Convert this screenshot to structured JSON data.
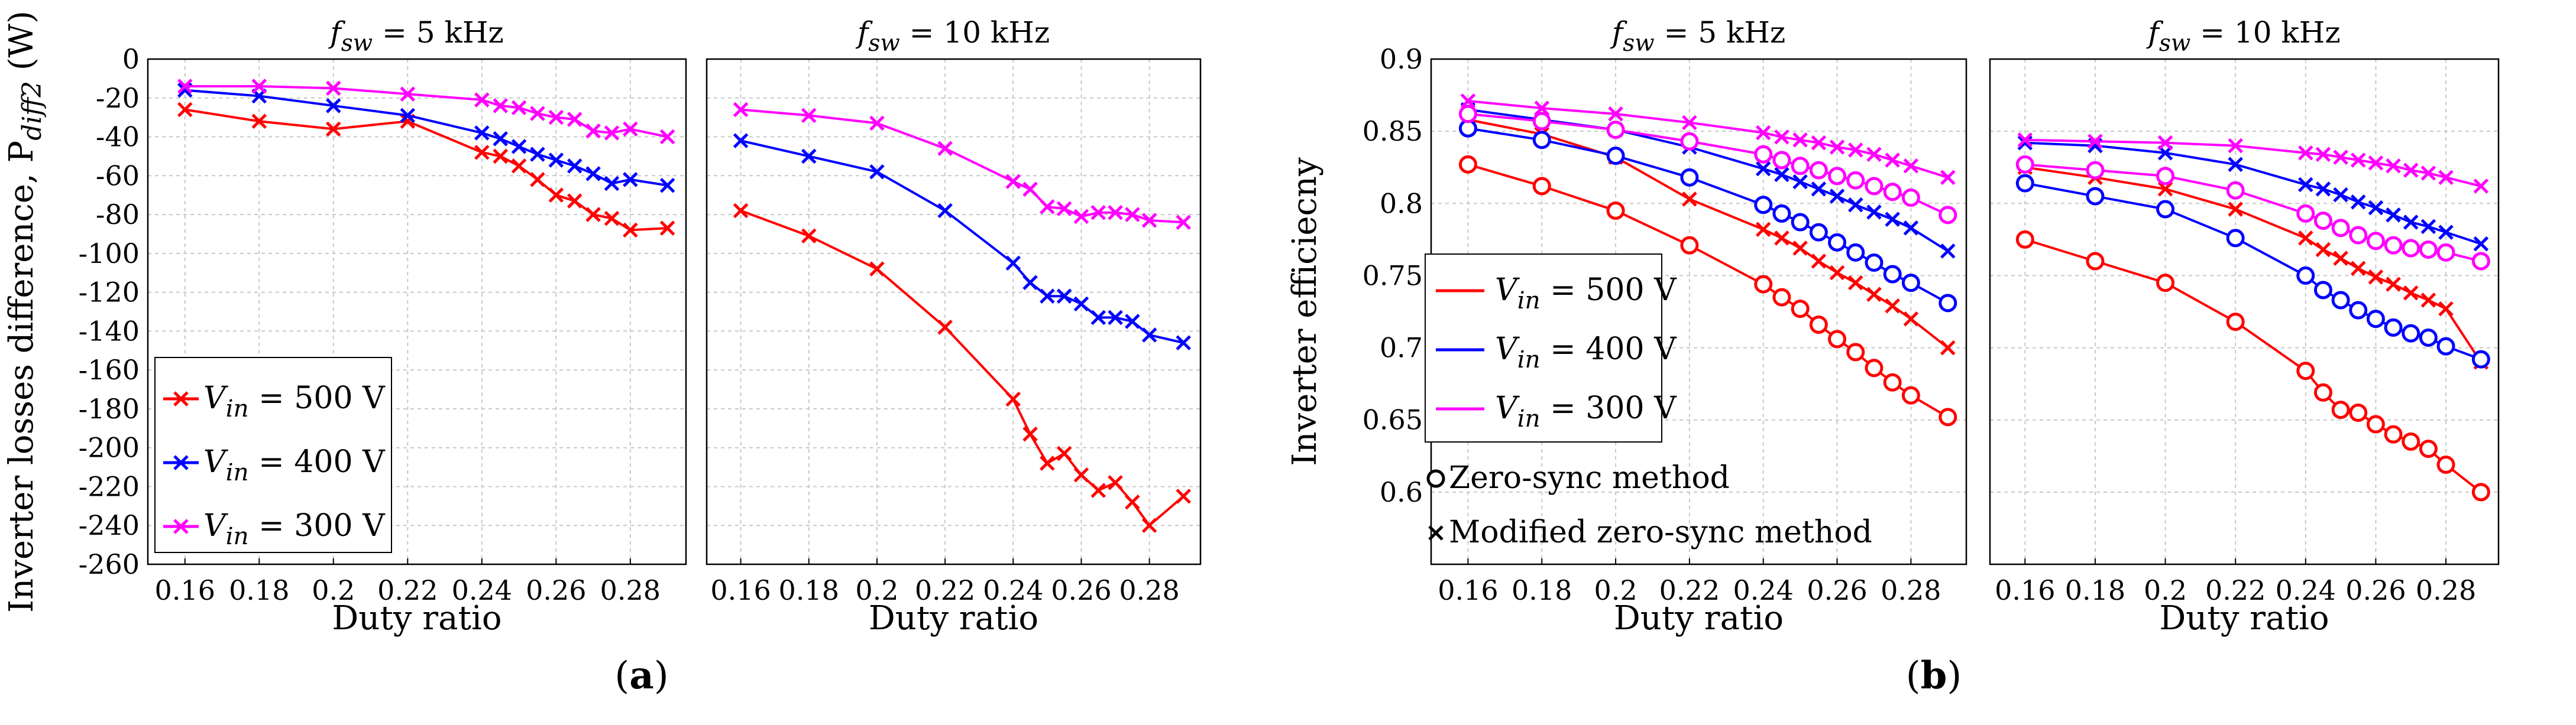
{
  "figure": {
    "caption_a": "(a)",
    "caption_b": "(b)",
    "caption_a_letter": "a",
    "caption_b_letter": "b"
  },
  "colors": {
    "v500": "#ff0000",
    "v400": "#0000ff",
    "v300": "#ff00ff"
  },
  "chart_data": [
    {
      "id": "a-left",
      "type": "line",
      "title": "f_sw = 5 kHz",
      "title_sym": "f",
      "title_sub": "sw",
      "title_val": "= 5 kHz",
      "xlabel": "Duty ratio",
      "ylabel": "Inverter losses difference, P",
      "ylabel_sub": "diff2",
      "ylabel_unit": "(W)",
      "xlim": [
        0.15,
        0.295
      ],
      "ylim": [
        -260,
        0
      ],
      "xticks": [
        "0.16",
        "0.18",
        "0.2",
        "0.22",
        "0.24",
        "0.26",
        "0.28"
      ],
      "yticks": [
        "0",
        "-20",
        "-40",
        "-60",
        "-80",
        "-100",
        "-120",
        "-140",
        "-160",
        "-180",
        "-200",
        "-220",
        "-240",
        "-260"
      ],
      "legend": [
        {
          "sym": "V",
          "sub": "in",
          "rest": "= 500 V"
        },
        {
          "sym": "V",
          "sub": "in",
          "rest": "= 400 V"
        },
        {
          "sym": "V",
          "sub": "in",
          "rest": "= 300 V"
        }
      ],
      "series": [
        {
          "name": "Vin = 500 V",
          "color": "#ff0000",
          "marker": "x",
          "x": [
            0.16,
            0.18,
            0.2,
            0.22,
            0.24,
            0.245,
            0.25,
            0.255,
            0.26,
            0.265,
            0.27,
            0.275,
            0.28,
            0.29
          ],
          "y": [
            -26,
            -32,
            -36,
            -32,
            -48,
            -50,
            -55,
            -62,
            -70,
            -73,
            -80,
            -82,
            -88,
            -87
          ]
        },
        {
          "name": "Vin = 400 V",
          "color": "#0000ff",
          "marker": "x",
          "x": [
            0.16,
            0.18,
            0.2,
            0.22,
            0.24,
            0.245,
            0.25,
            0.255,
            0.26,
            0.265,
            0.27,
            0.275,
            0.28,
            0.29
          ],
          "y": [
            -16,
            -19,
            -24,
            -29,
            -38,
            -41,
            -45,
            -49,
            -52,
            -55,
            -59,
            -64,
            -62,
            -65
          ]
        },
        {
          "name": "Vin = 300 V",
          "color": "#ff00ff",
          "marker": "x",
          "x": [
            0.16,
            0.18,
            0.2,
            0.22,
            0.24,
            0.245,
            0.25,
            0.255,
            0.26,
            0.265,
            0.27,
            0.275,
            0.28,
            0.29
          ],
          "y": [
            -14,
            -14,
            -15,
            -18,
            -21,
            -24,
            -25,
            -28,
            -30,
            -31,
            -37,
            -38,
            -36,
            -40
          ]
        }
      ]
    },
    {
      "id": "a-right",
      "type": "line",
      "title": "f_sw = 10 kHz",
      "title_sym": "f",
      "title_sub": "sw",
      "title_val": "= 10 kHz",
      "xlabel": "Duty ratio",
      "xlim": [
        0.15,
        0.295
      ],
      "ylim": [
        -260,
        0
      ],
      "xticks": [
        "0.16",
        "0.18",
        "0.2",
        "0.22",
        "0.24",
        "0.26",
        "0.28"
      ],
      "series": [
        {
          "name": "Vin = 500 V",
          "color": "#ff0000",
          "marker": "x",
          "x": [
            0.16,
            0.18,
            0.2,
            0.22,
            0.24,
            0.245,
            0.25,
            0.255,
            0.26,
            0.265,
            0.27,
            0.275,
            0.28,
            0.29
          ],
          "y": [
            -78,
            -91,
            -108,
            -138,
            -175,
            -193,
            -208,
            -203,
            -214,
            -222,
            -218,
            -228,
            -240,
            -225
          ]
        },
        {
          "name": "Vin = 400 V",
          "color": "#0000ff",
          "marker": "x",
          "x": [
            0.16,
            0.18,
            0.2,
            0.22,
            0.24,
            0.245,
            0.25,
            0.255,
            0.26,
            0.265,
            0.27,
            0.275,
            0.28,
            0.29
          ],
          "y": [
            -42,
            -50,
            -58,
            -78,
            -105,
            -115,
            -122,
            -122,
            -126,
            -133,
            -133,
            -135,
            -142,
            -146
          ]
        },
        {
          "name": "Vin = 300 V",
          "color": "#ff00ff",
          "marker": "x",
          "x": [
            0.16,
            0.18,
            0.2,
            0.22,
            0.24,
            0.245,
            0.25,
            0.255,
            0.26,
            0.265,
            0.27,
            0.275,
            0.28,
            0.29
          ],
          "y": [
            -26,
            -29,
            -33,
            -46,
            -63,
            -67,
            -76,
            -77,
            -81,
            -79,
            -79,
            -80,
            -83,
            -84
          ]
        }
      ]
    },
    {
      "id": "b-left",
      "type": "line",
      "title": "f_sw = 5 kHz",
      "title_sym": "f",
      "title_sub": "sw",
      "title_val": "= 5 kHz",
      "xlabel": "Duty ratio",
      "ylabel": "Inverter efficiecny",
      "xlim": [
        0.15,
        0.295
      ],
      "ylim": [
        0.55,
        0.9
      ],
      "xticks": [
        "0.16",
        "0.18",
        "0.2",
        "0.22",
        "0.24",
        "0.26",
        "0.28"
      ],
      "yticks": [
        "0.9",
        "0.85",
        "0.8",
        "0.75",
        "0.7",
        "0.65",
        "0.6"
      ],
      "legend": [
        {
          "sym": "V",
          "sub": "in",
          "rest": "= 500 V"
        },
        {
          "sym": "V",
          "sub": "in",
          "rest": "= 400 V"
        },
        {
          "sym": "V",
          "sub": "in",
          "rest": "= 300 V"
        }
      ],
      "method_legend": [
        {
          "marker": "o",
          "label": "Zero-sync method"
        },
        {
          "marker": "x",
          "label": "Modified zero-sync method"
        }
      ],
      "series": [
        {
          "name": "Vin = 500 V (zero-sync)",
          "color": "#ff0000",
          "marker": "o",
          "x": [
            0.16,
            0.18,
            0.2,
            0.22,
            0.24,
            0.245,
            0.25,
            0.255,
            0.26,
            0.265,
            0.27,
            0.275,
            0.28,
            0.29
          ],
          "y": [
            0.827,
            0.812,
            0.795,
            0.771,
            0.744,
            0.735,
            0.727,
            0.716,
            0.706,
            0.697,
            0.686,
            0.676,
            0.667,
            0.652
          ]
        },
        {
          "name": "Vin = 500 V (modified)",
          "color": "#ff0000",
          "marker": "x",
          "x": [
            0.16,
            0.18,
            0.2,
            0.22,
            0.24,
            0.245,
            0.25,
            0.255,
            0.26,
            0.265,
            0.27,
            0.275,
            0.28,
            0.29
          ],
          "y": [
            0.858,
            0.848,
            0.832,
            0.803,
            0.782,
            0.776,
            0.769,
            0.76,
            0.752,
            0.745,
            0.737,
            0.729,
            0.72,
            0.7
          ]
        },
        {
          "name": "Vin = 400 V (zero-sync)",
          "color": "#0000ff",
          "marker": "o",
          "x": [
            0.16,
            0.18,
            0.2,
            0.22,
            0.24,
            0.245,
            0.25,
            0.255,
            0.26,
            0.265,
            0.27,
            0.275,
            0.28,
            0.29
          ],
          "y": [
            0.852,
            0.844,
            0.833,
            0.818,
            0.799,
            0.793,
            0.787,
            0.78,
            0.773,
            0.766,
            0.759,
            0.751,
            0.745,
            0.731
          ]
        },
        {
          "name": "Vin = 400 V (modified)",
          "color": "#0000ff",
          "marker": "x",
          "x": [
            0.16,
            0.18,
            0.2,
            0.22,
            0.24,
            0.245,
            0.25,
            0.255,
            0.26,
            0.265,
            0.27,
            0.275,
            0.28,
            0.29
          ],
          "y": [
            0.865,
            0.858,
            0.851,
            0.839,
            0.824,
            0.82,
            0.815,
            0.81,
            0.805,
            0.799,
            0.794,
            0.789,
            0.783,
            0.767
          ]
        },
        {
          "name": "Vin = 300 V (zero-sync)",
          "color": "#ff00ff",
          "marker": "o",
          "x": [
            0.16,
            0.18,
            0.2,
            0.22,
            0.24,
            0.245,
            0.25,
            0.255,
            0.26,
            0.265,
            0.27,
            0.275,
            0.28,
            0.29
          ],
          "y": [
            0.862,
            0.857,
            0.851,
            0.843,
            0.834,
            0.83,
            0.826,
            0.823,
            0.819,
            0.816,
            0.812,
            0.808,
            0.804,
            0.792
          ]
        },
        {
          "name": "Vin = 300 V (modified)",
          "color": "#ff00ff",
          "marker": "x",
          "x": [
            0.16,
            0.18,
            0.2,
            0.22,
            0.24,
            0.245,
            0.25,
            0.255,
            0.26,
            0.265,
            0.27,
            0.275,
            0.28,
            0.29
          ],
          "y": [
            0.871,
            0.866,
            0.862,
            0.856,
            0.849,
            0.846,
            0.844,
            0.842,
            0.839,
            0.837,
            0.834,
            0.83,
            0.826,
            0.818
          ]
        }
      ]
    },
    {
      "id": "b-right",
      "type": "line",
      "title": "f_sw = 10 kHz",
      "title_sym": "f",
      "title_sub": "sw",
      "title_val": "= 10 kHz",
      "xlabel": "Duty ratio",
      "xlim": [
        0.15,
        0.295
      ],
      "ylim": [
        0.55,
        0.9
      ],
      "xticks": [
        "0.16",
        "0.18",
        "0.2",
        "0.22",
        "0.24",
        "0.26",
        "0.28"
      ],
      "series": [
        {
          "name": "Vin = 500 V (zero-sync)",
          "color": "#ff0000",
          "marker": "o",
          "x": [
            0.16,
            0.18,
            0.2,
            0.22,
            0.24,
            0.245,
            0.25,
            0.255,
            0.26,
            0.265,
            0.27,
            0.275,
            0.28,
            0.29
          ],
          "y": [
            0.775,
            0.76,
            0.745,
            0.718,
            0.684,
            0.669,
            0.657,
            0.655,
            0.647,
            0.64,
            0.635,
            0.63,
            0.619,
            0.6
          ]
        },
        {
          "name": "Vin = 500 V (modified)",
          "color": "#ff0000",
          "marker": "x",
          "x": [
            0.16,
            0.18,
            0.2,
            0.22,
            0.24,
            0.245,
            0.25,
            0.255,
            0.26,
            0.265,
            0.27,
            0.275,
            0.28,
            0.29
          ],
          "y": [
            0.825,
            0.818,
            0.81,
            0.796,
            0.776,
            0.768,
            0.762,
            0.755,
            0.749,
            0.744,
            0.738,
            0.733,
            0.727,
            0.69
          ]
        },
        {
          "name": "Vin = 400 V (zero-sync)",
          "color": "#0000ff",
          "marker": "o",
          "x": [
            0.16,
            0.18,
            0.2,
            0.22,
            0.24,
            0.245,
            0.25,
            0.255,
            0.26,
            0.265,
            0.27,
            0.275,
            0.28,
            0.29
          ],
          "y": [
            0.814,
            0.805,
            0.796,
            0.776,
            0.75,
            0.74,
            0.733,
            0.726,
            0.72,
            0.714,
            0.71,
            0.707,
            0.701,
            0.692
          ]
        },
        {
          "name": "Vin = 400 V (modified)",
          "color": "#0000ff",
          "marker": "x",
          "x": [
            0.16,
            0.18,
            0.2,
            0.22,
            0.24,
            0.245,
            0.25,
            0.255,
            0.26,
            0.265,
            0.27,
            0.275,
            0.28,
            0.29
          ],
          "y": [
            0.842,
            0.84,
            0.835,
            0.827,
            0.813,
            0.81,
            0.806,
            0.801,
            0.797,
            0.792,
            0.787,
            0.784,
            0.78,
            0.772
          ]
        },
        {
          "name": "Vin = 300 V (zero-sync)",
          "color": "#ff00ff",
          "marker": "o",
          "x": [
            0.16,
            0.18,
            0.2,
            0.22,
            0.24,
            0.245,
            0.25,
            0.255,
            0.26,
            0.265,
            0.27,
            0.275,
            0.28,
            0.29
          ],
          "y": [
            0.827,
            0.823,
            0.819,
            0.809,
            0.793,
            0.788,
            0.783,
            0.778,
            0.774,
            0.771,
            0.769,
            0.768,
            0.766,
            0.76
          ]
        },
        {
          "name": "Vin = 300 V (modified)",
          "color": "#ff00ff",
          "marker": "x",
          "x": [
            0.16,
            0.18,
            0.2,
            0.22,
            0.24,
            0.245,
            0.25,
            0.255,
            0.26,
            0.265,
            0.27,
            0.275,
            0.28,
            0.29
          ],
          "y": [
            0.844,
            0.843,
            0.842,
            0.84,
            0.835,
            0.834,
            0.832,
            0.83,
            0.828,
            0.826,
            0.823,
            0.821,
            0.818,
            0.812
          ]
        }
      ]
    }
  ]
}
